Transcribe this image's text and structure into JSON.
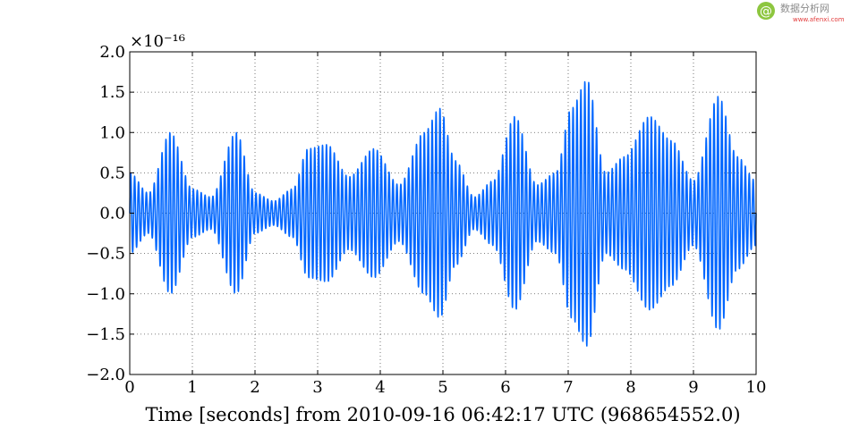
{
  "watermark": {
    "brand_cn": "数据分析网",
    "brand_url": "www.afenxi.com",
    "logo_color": "#8dc63f",
    "cn_color": "#8c8c8c",
    "url_color": "#e23b3b"
  },
  "chart_data": {
    "type": "line",
    "title": "",
    "xlabel": "Time [seconds] from 2010-09-16 06:42:17 UTC (968654552.0)",
    "ylabel": "",
    "y_scale_label": "×10⁻¹⁶",
    "xlim": [
      0,
      10
    ],
    "ylim": [
      -2e-16,
      2e-16
    ],
    "grid": true,
    "grid_style": "dotted",
    "legend": "none",
    "line_color": "#0066ff",
    "x_ticks": [
      0,
      1,
      2,
      3,
      4,
      5,
      6,
      7,
      8,
      9,
      10
    ],
    "x_tick_labels": [
      "0",
      "1",
      "2",
      "3",
      "4",
      "5",
      "6",
      "7",
      "8",
      "9",
      "10"
    ],
    "y_ticks": [
      -2.0,
      -1.5,
      -1.0,
      -0.5,
      0.0,
      0.5,
      1.0,
      1.5,
      2.0
    ],
    "y_tick_labels": [
      "−2.0",
      "−1.5",
      "−1.0",
      "−0.5",
      "0.0",
      "0.5",
      "1.0",
      "1.5",
      "2.0"
    ],
    "y_unit_multiplier": 1e-16,
    "carrier_frequency_hz": 16,
    "envelope": {
      "unit": "1e-16",
      "t": [
        0.0,
        0.3,
        0.65,
        1.0,
        1.3,
        1.7,
        2.0,
        2.3,
        2.6,
        2.85,
        3.15,
        3.5,
        3.9,
        4.3,
        4.7,
        4.95,
        5.2,
        5.5,
        5.8,
        6.15,
        6.5,
        6.8,
        7.05,
        7.3,
        7.6,
        7.9,
        8.3,
        8.65,
        9.0,
        9.4,
        9.7,
        10.0
      ],
      "amp": [
        0.5,
        0.25,
        1.0,
        0.3,
        0.2,
        1.0,
        0.25,
        0.15,
        0.3,
        0.8,
        0.85,
        0.45,
        0.8,
        0.35,
        1.0,
        1.3,
        0.65,
        0.2,
        0.4,
        1.2,
        0.35,
        0.5,
        1.3,
        1.65,
        0.5,
        0.7,
        1.2,
        0.9,
        0.4,
        1.45,
        0.7,
        0.4
      ]
    }
  }
}
